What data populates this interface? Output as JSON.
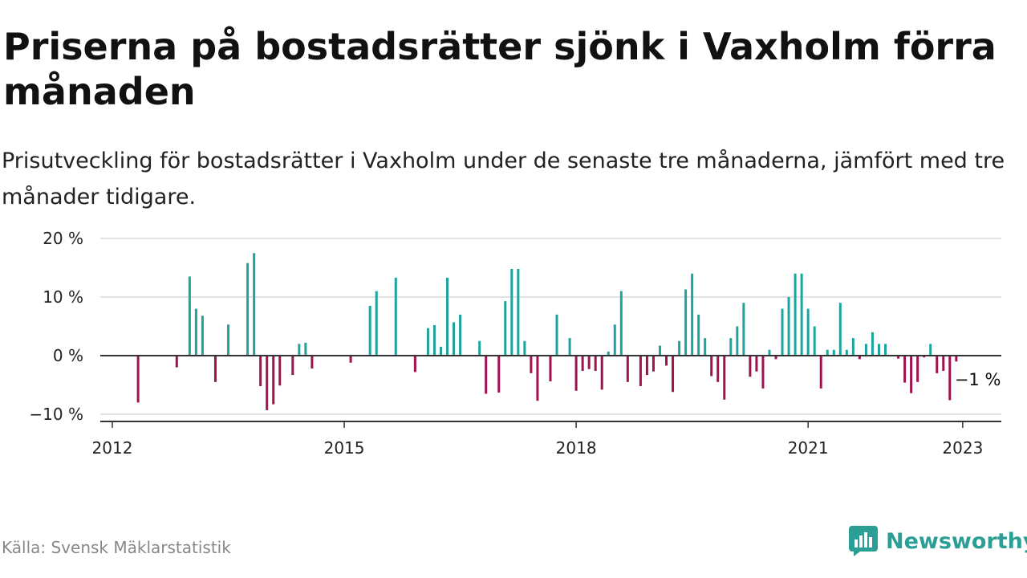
{
  "header": {
    "title": "Priserna på bostadsrätter sjönk i Vaxholm förra månaden",
    "subtitle": "Prisutveckling för bostadsrätter i Vaxholm under de senaste tre månaderna, jämfört med tre månader tidigare."
  },
  "footer": {
    "source": "Källa: Svensk Mäklarstatistik",
    "brand": "Newsworthy"
  },
  "colors": {
    "positive": "#1fa39d",
    "negative": "#a0124f",
    "grid": "#d9d9d9",
    "axis": "#333333",
    "brand": "#2b9e96"
  },
  "chart_data": {
    "type": "bar",
    "title": "Priserna på bostadsrätter sjönk i Vaxholm förra månaden",
    "subtitle": "Prisutveckling för bostadsrätter i Vaxholm under de senaste tre månaderna, jämfört med tre månader tidigare.",
    "ylim": [
      -10,
      20
    ],
    "yticks": [
      -10,
      0,
      10,
      20
    ],
    "ytick_labels": [
      "−10 %",
      "0 %",
      "10 %",
      "20 %"
    ],
    "xlim": [
      "2012-01",
      "2023-06"
    ],
    "xticks": [
      "2012-01",
      "2015-01",
      "2018-01",
      "2021-01",
      "2023-01"
    ],
    "xtick_labels": [
      "2012",
      "2015",
      "2018",
      "2021",
      "2023"
    ],
    "grid": true,
    "annotation": {
      "date": "2022-12",
      "text": "−1 %"
    },
    "x": [
      "2012-05",
      "2012-11",
      "2013-01",
      "2013-02",
      "2013-03",
      "2013-05",
      "2013-07",
      "2013-10",
      "2013-11",
      "2013-12",
      "2014-01",
      "2014-02",
      "2014-03",
      "2014-05",
      "2014-06",
      "2014-07",
      "2014-08",
      "2015-02",
      "2015-05",
      "2015-06",
      "2015-09",
      "2015-12",
      "2016-02",
      "2016-03",
      "2016-04",
      "2016-05",
      "2016-06",
      "2016-07",
      "2016-10",
      "2016-11",
      "2017-01",
      "2017-02",
      "2017-03",
      "2017-04",
      "2017-05",
      "2017-06",
      "2017-07",
      "2017-09",
      "2017-10",
      "2017-12",
      "2018-01",
      "2018-02",
      "2018-03",
      "2018-04",
      "2018-05",
      "2018-06",
      "2018-07",
      "2018-08",
      "2018-09",
      "2018-11",
      "2018-12",
      "2019-01",
      "2019-02",
      "2019-03",
      "2019-04",
      "2019-05",
      "2019-06",
      "2019-07",
      "2019-08",
      "2019-09",
      "2019-10",
      "2019-11",
      "2019-12",
      "2020-01",
      "2020-02",
      "2020-03",
      "2020-04",
      "2020-05",
      "2020-06",
      "2020-07",
      "2020-08",
      "2020-09",
      "2020-10",
      "2020-11",
      "2020-12",
      "2021-01",
      "2021-02",
      "2021-03",
      "2021-04",
      "2021-05",
      "2021-06",
      "2021-07",
      "2021-08",
      "2021-09",
      "2021-10",
      "2021-11",
      "2021-12",
      "2022-01",
      "2022-03",
      "2022-04",
      "2022-05",
      "2022-06",
      "2022-07",
      "2022-08",
      "2022-09",
      "2022-10",
      "2022-11",
      "2022-12"
    ],
    "values": [
      -8,
      -2,
      13.5,
      8,
      6.8,
      -4.5,
      5.3,
      15.8,
      17.5,
      -5.2,
      -9.3,
      -8.3,
      -5.1,
      -3.3,
      2,
      2.2,
      -2.2,
      -1.2,
      8.5,
      11,
      13.3,
      -2.8,
      4.7,
      5.2,
      1.5,
      13.3,
      5.7,
      7,
      2.5,
      -6.5,
      -6.3,
      9.3,
      14.8,
      14.8,
      2.5,
      -3,
      -7.7,
      -4.4,
      7,
      3,
      -6,
      -2.6,
      -2.3,
      -2.6,
      -5.8,
      0.7,
      5.3,
      11,
      -4.5,
      -5.2,
      -3.3,
      -2.7,
      1.7,
      -1.7,
      -6.2,
      2.5,
      11.3,
      14,
      7,
      3,
      -3.5,
      -4.5,
      -7.5,
      3,
      5,
      9,
      -3.6,
      -2.7,
      -5.6,
      1,
      -0.6,
      8,
      10,
      14,
      14,
      8,
      5,
      -5.6,
      1,
      1,
      9,
      1,
      3,
      -0.6,
      2,
      4,
      2,
      2,
      -0.5,
      -4.6,
      -6.4,
      -4.5,
      -0.3,
      2,
      -3,
      -2.6,
      -7.6,
      -1
    ]
  }
}
